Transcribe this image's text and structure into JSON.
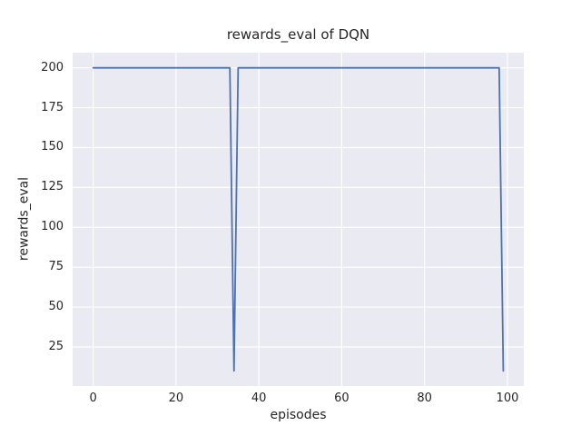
{
  "chart_data": {
    "type": "line",
    "title": "rewards_eval of DQN",
    "xlabel": "episodes",
    "ylabel": "rewards_eval",
    "x": [
      0,
      1,
      2,
      3,
      4,
      5,
      6,
      7,
      8,
      9,
      10,
      11,
      12,
      13,
      14,
      15,
      16,
      17,
      18,
      19,
      20,
      21,
      22,
      23,
      24,
      25,
      26,
      27,
      28,
      29,
      30,
      31,
      32,
      33,
      34,
      35,
      36,
      37,
      38,
      39,
      40,
      41,
      42,
      43,
      44,
      45,
      46,
      47,
      48,
      49,
      50,
      51,
      52,
      53,
      54,
      55,
      56,
      57,
      58,
      59,
      60,
      61,
      62,
      63,
      64,
      65,
      66,
      67,
      68,
      69,
      70,
      71,
      72,
      73,
      74,
      75,
      76,
      77,
      78,
      79,
      80,
      81,
      82,
      83,
      84,
      85,
      86,
      87,
      88,
      89,
      90,
      91,
      92,
      93,
      94,
      95,
      96,
      97,
      98,
      99
    ],
    "y": [
      200,
      200,
      200,
      200,
      200,
      200,
      200,
      200,
      200,
      200,
      200,
      200,
      200,
      200,
      200,
      200,
      200,
      200,
      200,
      200,
      200,
      200,
      200,
      200,
      200,
      200,
      200,
      200,
      200,
      200,
      200,
      200,
      200,
      200,
      10,
      200,
      200,
      200,
      200,
      200,
      200,
      200,
      200,
      200,
      200,
      200,
      200,
      200,
      200,
      200,
      200,
      200,
      200,
      200,
      200,
      200,
      200,
      200,
      200,
      200,
      200,
      200,
      200,
      200,
      200,
      200,
      200,
      200,
      200,
      200,
      200,
      200,
      200,
      200,
      200,
      200,
      200,
      200,
      200,
      200,
      200,
      200,
      200,
      200,
      200,
      200,
      200,
      200,
      200,
      200,
      200,
      200,
      200,
      200,
      200,
      200,
      200,
      200,
      200,
      10
    ],
    "xticks": [
      0,
      20,
      40,
      60,
      80,
      100
    ],
    "yticks": [
      25,
      50,
      75,
      100,
      125,
      150,
      175,
      200
    ],
    "xlim": [
      -4.95,
      103.95
    ],
    "ylim": [
      0.5,
      209.5
    ],
    "grid": true,
    "legend_position": "none",
    "line_color": "#4c72b0",
    "plot_bg_color": "#eaeaf2",
    "grid_color": "#ffffff",
    "text_color": "#262626"
  }
}
